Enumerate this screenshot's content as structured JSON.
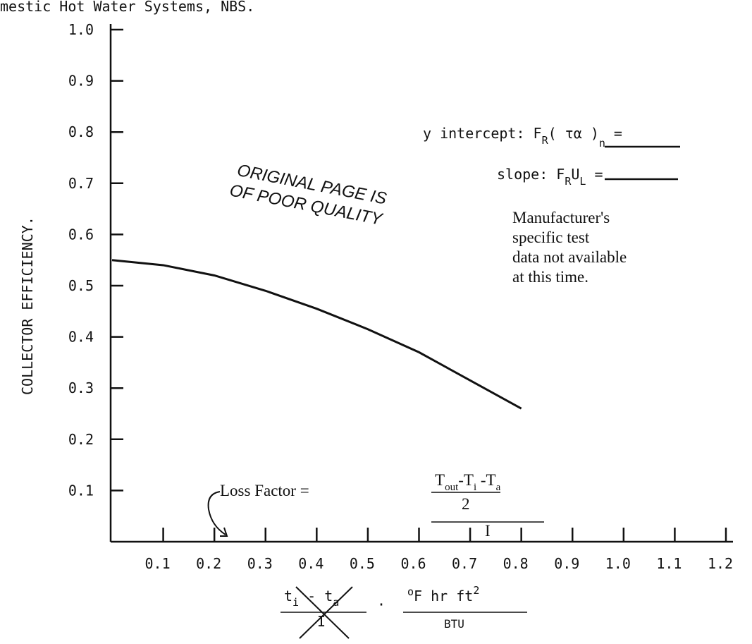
{
  "chart_data": {
    "type": "line",
    "title": "mestic Hot Water Systems, NBS.",
    "ylabel": "COLLECTOR EFFICIENCY.",
    "x": [
      0,
      0.1,
      0.2,
      0.3,
      0.4,
      0.5,
      0.6,
      0.7,
      0.8
    ],
    "series": [
      {
        "name": null,
        "color": "#111111",
        "values": [
          0.55,
          0.54,
          0.52,
          0.49,
          0.455,
          0.415,
          0.37,
          0.315,
          0.26
        ]
      }
    ],
    "xlim": [
      0,
      1.2
    ],
    "ylim": [
      0,
      1
    ],
    "xticks": [
      0.1,
      0.2,
      0.3,
      0.4,
      0.5,
      0.6,
      0.7,
      0.8,
      0.9,
      {
        "value": 1,
        "label": "1.0"
      },
      1.1,
      1.2
    ],
    "yticks": [
      0.1,
      0.2,
      0.3,
      0.4,
      0.5,
      0.6,
      0.7,
      0.8,
      0.9,
      {
        "value": 1,
        "label": "1.0"
      }
    ],
    "grid": false,
    "annotations": {
      "intercept": [
        "y intercept: F",
        "R",
        "( τα )",
        "n",
        " ="
      ],
      "slope": [
        "slope: F",
        "R",
        "U",
        "L",
        " ="
      ],
      "stamp": [
        "ORIGINAL PAGE IS",
        "OF POOR QUALITY"
      ],
      "note": [
        "Manufacturer's",
        "specific test",
        "data not available",
        "at this time."
      ],
      "loss_factor": {
        "label": "Loss Factor =",
        "numerator": [
          "T",
          "out",
          "-T",
          "i",
          " -T",
          "a"
        ],
        "half": "2",
        "denominator": "I"
      },
      "xlabel": {
        "left": [
          "t",
          "i",
          " - ",
          "t",
          "a"
        ],
        "left_den": "I",
        "dot": "·",
        "right": [
          "o",
          "F hr  ft",
          "2"
        ],
        "right_den": "BTU"
      }
    }
  }
}
